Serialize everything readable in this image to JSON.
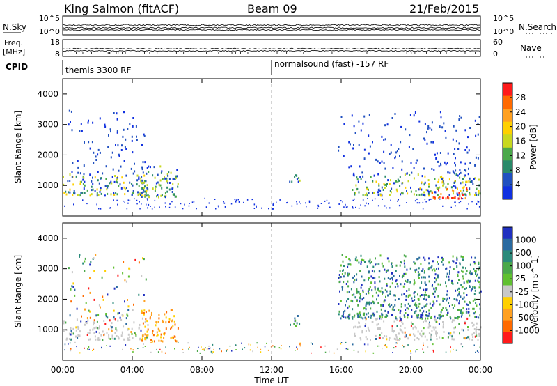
{
  "header": {
    "station": "King Salmon (fitACF)",
    "beam": "Beam 09",
    "date": "21/Feb/2015"
  },
  "strips": {
    "nsky_label": "N.Sky",
    "nsearch_label": "N.Search",
    "nsky_ticks": [
      "10^5",
      "10^0"
    ],
    "nsearch_ticks": [
      "10^5",
      "10^0"
    ],
    "freq_label_1": "Freq.",
    "freq_label_2": "[MHz]",
    "freq_ticks": [
      "18",
      "8"
    ],
    "nave_label": "Nave",
    "nave_ticks": [
      "60",
      "0"
    ],
    "cpid_label": "CPID",
    "cpid_segments": [
      {
        "text": "themis 3300 RF",
        "start_hour": 0
      },
      {
        "text": "normalsound (fast) -157 RF",
        "start_hour": 12
      }
    ]
  },
  "chart_data": [
    {
      "type": "heatmap",
      "quantity": "power",
      "xlabel": "",
      "ylabel": "Slant Range [km]",
      "xlim": [
        0,
        24
      ],
      "ylim": [
        0,
        4500
      ],
      "y_ticks": [
        "1000",
        "2000",
        "3000",
        "4000"
      ],
      "colorbar": {
        "label": "Power [dB]",
        "ticks": [
          "28",
          "24",
          "20",
          "16",
          "12",
          "8",
          "4"
        ],
        "colors": [
          "#ff1a1a",
          "#ff6a00",
          "#ffa020",
          "#ffd000",
          "#c8d820",
          "#4aa84a",
          "#2a8a6a",
          "#2050c0",
          "#1030e0"
        ]
      },
      "regions": [
        {
          "x0": 0.0,
          "x1": 4.9,
          "y0": 700,
          "y1": 1400,
          "level": "strong"
        },
        {
          "x0": 0.3,
          "x1": 4.8,
          "y0": 1400,
          "y1": 3500,
          "level": "weak"
        },
        {
          "x0": 4.5,
          "x1": 6.6,
          "y0": 650,
          "y1": 1700,
          "level": "medium"
        },
        {
          "x0": 13.0,
          "x1": 13.6,
          "y0": 1150,
          "y1": 1550,
          "level": "medium"
        },
        {
          "x0": 16.6,
          "x1": 24.0,
          "y0": 700,
          "y1": 1400,
          "level": "strong"
        },
        {
          "x0": 15.8,
          "x1": 24.0,
          "y0": 1400,
          "y1": 3500,
          "level": "weak"
        },
        {
          "x0": 21.0,
          "x1": 23.3,
          "y0": 600,
          "y1": 950,
          "level": "very-strong"
        }
      ]
    },
    {
      "type": "heatmap",
      "quantity": "velocity",
      "xlabel": "Time UT",
      "ylabel": "Slant Range [km]",
      "xlim": [
        0,
        24
      ],
      "ylim": [
        0,
        4500
      ],
      "x_ticks": [
        "00:00",
        "04:00",
        "08:00",
        "12:00",
        "16:00",
        "20:00",
        "00:00"
      ],
      "y_ticks": [
        "1000",
        "2000",
        "3000",
        "4000"
      ],
      "colorbar": {
        "label": "Velocity [m s^-1]",
        "ticks": [
          "1000",
          "500",
          "100",
          "25",
          "-25",
          "-100",
          "-500",
          "-1000"
        ],
        "colors": [
          "#2030c0",
          "#2a6aa0",
          "#2a8a7a",
          "#4aa84a",
          "#60c030",
          "#c8c8c8",
          "#ffd000",
          "#ffa020",
          "#ff6a00",
          "#ff1a1a"
        ]
      },
      "regions": [
        {
          "x0": 0.0,
          "x1": 4.9,
          "y0": 700,
          "y1": 1400,
          "level": "grey"
        },
        {
          "x0": 0.3,
          "x1": 4.8,
          "y0": 1400,
          "y1": 3500,
          "level": "mixed"
        },
        {
          "x0": 4.5,
          "x1": 6.6,
          "y0": 650,
          "y1": 1700,
          "level": "negative"
        },
        {
          "x0": 13.0,
          "x1": 13.6,
          "y0": 1150,
          "y1": 1550,
          "level": "positive"
        },
        {
          "x0": 16.6,
          "x1": 24.0,
          "y0": 700,
          "y1": 1400,
          "level": "grey"
        },
        {
          "x0": 15.8,
          "x1": 24.0,
          "y0": 1400,
          "y1": 3500,
          "level": "positive"
        }
      ]
    }
  ]
}
